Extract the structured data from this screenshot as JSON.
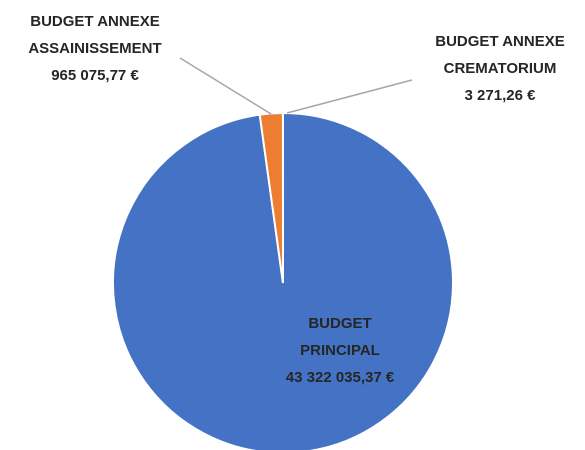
{
  "chart_data": {
    "type": "pie",
    "categories": [
      "BUDGET PRINCIPAL",
      "BUDGET ANNEXE ASSAINISSEMENT",
      "BUDGET ANNEXE CREMATORIUM"
    ],
    "values": [
      43322035.37,
      965075.77,
      3271.26
    ],
    "value_labels": [
      "43 322 035,37 €",
      "965 075,77 €",
      "3 271,26 €"
    ],
    "colors": [
      "#4472c4",
      "#ed7d31",
      "#a5a5a5"
    ]
  }
}
